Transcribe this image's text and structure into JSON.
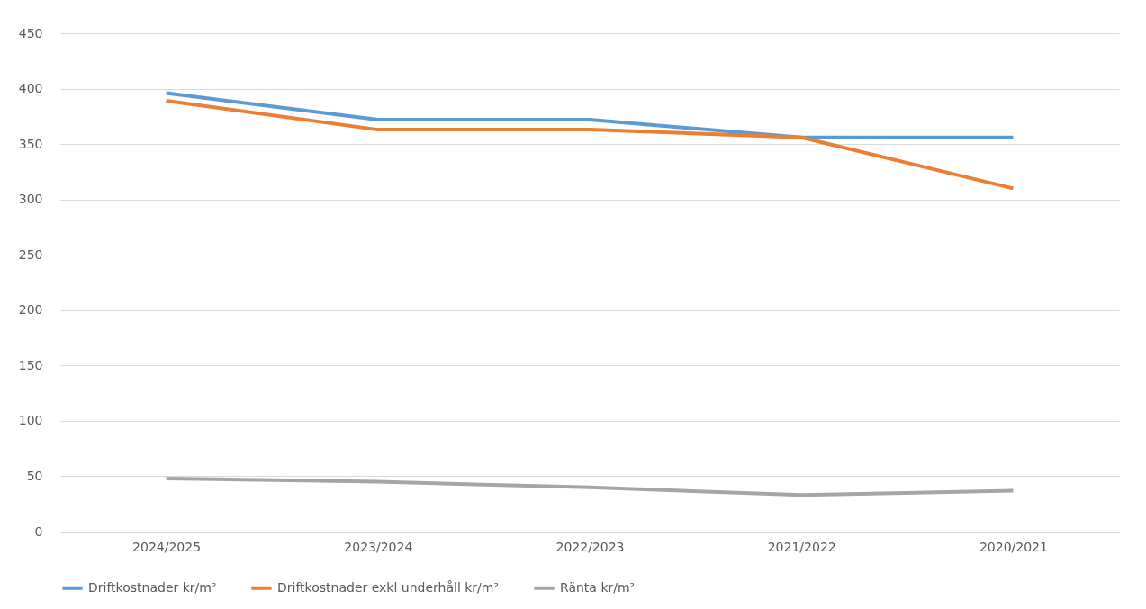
{
  "chart_data": {
    "type": "line",
    "categories": [
      "2024/2025",
      "2023/2024",
      "2022/2023",
      "2021/2022",
      "2020/2021"
    ],
    "series": [
      {
        "name": "Driftkostnader kr/m²",
        "color": "#5b9bd5",
        "values": [
          396,
          372,
          372,
          356,
          356
        ]
      },
      {
        "name": "Driftkostnader exkl underhåll kr/m²",
        "color": "#ed7d31",
        "values": [
          389,
          363,
          363,
          356,
          310
        ]
      },
      {
        "name": "Ränta kr/m²",
        "color": "#a5a5a5",
        "values": [
          48,
          45,
          40,
          33,
          37
        ]
      }
    ],
    "ylim": [
      0,
      450
    ],
    "yticks": [
      0,
      50,
      100,
      150,
      200,
      250,
      300,
      350,
      400,
      450
    ],
    "grid": "y",
    "legend": "bottom",
    "marker": "none",
    "line_style": "solid"
  }
}
